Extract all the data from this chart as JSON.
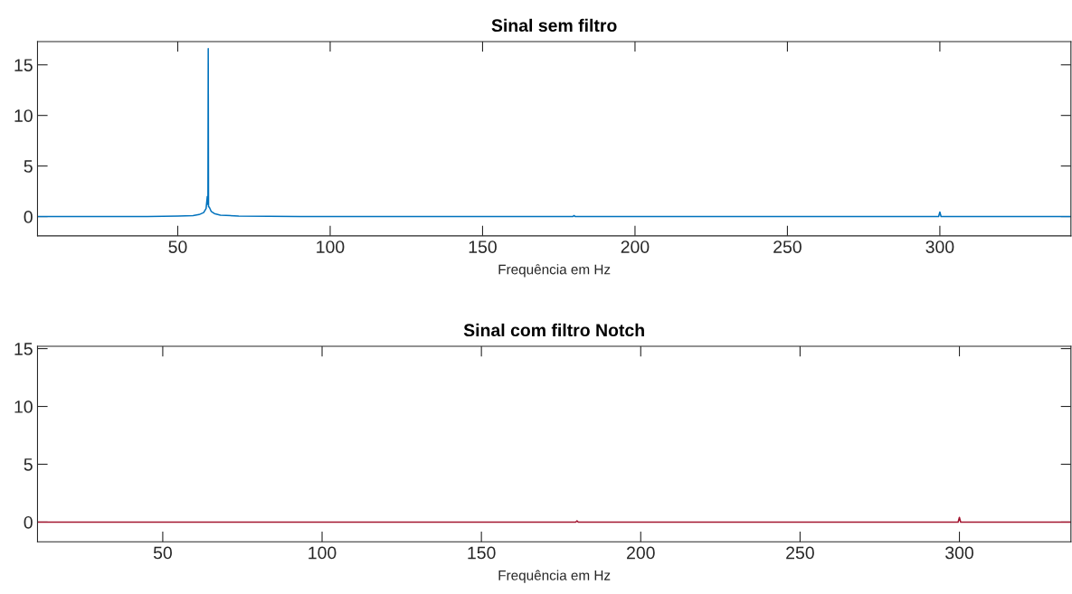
{
  "chart_data": [
    {
      "type": "line",
      "title": "Sinal sem filtro",
      "xlabel": "Frequência em Hz",
      "xlim": [
        4,
        343
      ],
      "xticks": [
        50,
        100,
        150,
        200,
        250,
        300
      ],
      "ylim": [
        -1.9,
        17.3
      ],
      "yticks": [
        0,
        5,
        10,
        15
      ],
      "grid": false,
      "legend": false,
      "series": [
        {
          "color": "#0072bd",
          "x": [
            4,
            40,
            50,
            55,
            57,
            58.5,
            59.3,
            59.7,
            59.9,
            60,
            60.1,
            60.4,
            61,
            62,
            64,
            70,
            90,
            179.6,
            180,
            180.4,
            299.6,
            300,
            300.4,
            343
          ],
          "values": [
            0,
            0.01,
            0.05,
            0.1,
            0.2,
            0.4,
            0.8,
            2.0,
            1.2,
            16.6,
            1.0,
            0.9,
            0.5,
            0.3,
            0.15,
            0.05,
            0.01,
            0,
            0.1,
            0,
            0,
            0.45,
            0,
            0
          ]
        }
      ]
    },
    {
      "type": "line",
      "title": "Sinal com filtro Notch",
      "xlabel": "Frequência em Hz",
      "xlim": [
        10.7,
        335
      ],
      "xticks": [
        50,
        100,
        150,
        200,
        250,
        300
      ],
      "ylim": [
        -1.7,
        15.2
      ],
      "yticks": [
        0,
        5,
        10,
        15
      ],
      "grid": false,
      "legend": false,
      "series": [
        {
          "color": "#a2142f",
          "x": [
            10.7,
            179.6,
            180,
            180.4,
            299.6,
            300,
            300.4,
            335
          ],
          "values": [
            0,
            0,
            0.1,
            0,
            0,
            0.4,
            0,
            0
          ]
        }
      ]
    }
  ]
}
